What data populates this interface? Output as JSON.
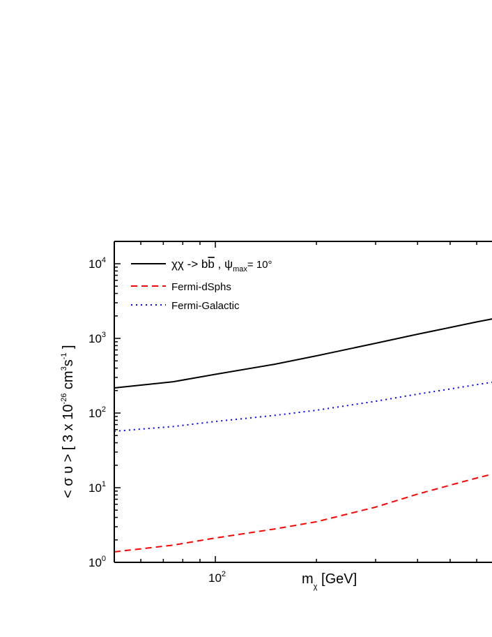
{
  "chart_data": {
    "type": "line",
    "title": "",
    "x_scale": "log",
    "y_scale": "log",
    "xlim": [
      50,
      700
    ],
    "ylim": [
      1,
      20000
    ],
    "grid": false,
    "legend_placement": "top-left",
    "xlabel": {
      "main": "m",
      "sub": "χ",
      "unit": " [GeV]"
    },
    "ylabel": {
      "parts": [
        "< σ υ > [ 3 x 10",
        "-26",
        " cm",
        "3",
        "s",
        "-1",
        " ]"
      ]
    },
    "x_ticks": [
      {
        "value": 100,
        "base": "10",
        "exp": "2"
      }
    ],
    "y_ticks": [
      {
        "value": 1,
        "base": "10",
        "exp": "0"
      },
      {
        "value": 10,
        "base": "10",
        "exp": "1"
      },
      {
        "value": 100,
        "base": "10",
        "exp": "2"
      },
      {
        "value": 1000,
        "base": "10",
        "exp": "3"
      },
      {
        "value": 10000,
        "base": "10",
        "exp": "4"
      }
    ],
    "x": [
      50,
      75,
      100,
      150,
      200,
      300,
      400,
      500,
      600,
      700
    ],
    "series": [
      {
        "name": "χχ -> bb̄ , ψmax = 10°",
        "legend": {
          "main": "χχ -> b",
          "bbar": "b",
          "sep": " , ψ",
          "sub": "max",
          "tail": "= 10°"
        },
        "color": "#000000",
        "style": "solid",
        "values": [
          217,
          263,
          330,
          450,
          584,
          860,
          1137,
          1400,
          1660,
          1900
        ]
      },
      {
        "name": "Fermi-dSphs",
        "color": "#ff0000",
        "style": "dashed",
        "values": [
          1.38,
          1.7,
          2.12,
          2.8,
          3.5,
          5.5,
          8.2,
          10.8,
          13.5,
          16
        ]
      },
      {
        "name": "Fermi-Galactic",
        "color": "#0000ff",
        "style": "dotted",
        "values": [
          57,
          66,
          77,
          93,
          109,
          144,
          179,
          210,
          240,
          268
        ]
      }
    ]
  }
}
